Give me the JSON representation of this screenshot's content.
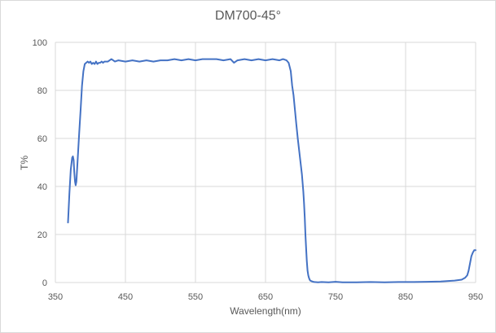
{
  "chart_data": {
    "type": "line",
    "title": "DM700-45°",
    "xlabel": "Wavelength(nm)",
    "ylabel": "T%",
    "xlim": [
      350,
      950
    ],
    "ylim": [
      0,
      100
    ],
    "x_ticks": [
      350,
      450,
      550,
      650,
      750,
      850,
      950
    ],
    "y_ticks": [
      0,
      20,
      40,
      60,
      80,
      100
    ],
    "grid": true,
    "legend": "none",
    "line_color": "#4472c4",
    "series": [
      {
        "name": "DM700-45°",
        "x": [
          368,
          370,
          372,
          374,
          375,
          376,
          377,
          378,
          379,
          380,
          382,
          384,
          386,
          388,
          390,
          392,
          394,
          396,
          398,
          400,
          402,
          404,
          406,
          408,
          410,
          412,
          414,
          416,
          418,
          420,
          425,
          430,
          435,
          440,
          450,
          460,
          470,
          480,
          490,
          500,
          510,
          520,
          530,
          540,
          550,
          560,
          570,
          580,
          590,
          600,
          605,
          610,
          620,
          630,
          640,
          650,
          660,
          670,
          675,
          680,
          683,
          686,
          688,
          690,
          692,
          694,
          696,
          698,
          700,
          702,
          704,
          705,
          706,
          707,
          708,
          709,
          710,
          711,
          712,
          713,
          714,
          716,
          718,
          720,
          725,
          730,
          740,
          750,
          760,
          780,
          800,
          820,
          840,
          860,
          880,
          900,
          920,
          930,
          935,
          938,
          940,
          942,
          944,
          946,
          948,
          950
        ],
        "y": [
          25,
          37,
          47,
          52,
          52.5,
          51,
          46,
          42,
          40.5,
          42,
          52,
          62,
          72,
          82,
          88,
          91,
          91.5,
          92,
          91.5,
          92,
          91,
          91.5,
          91,
          92,
          91,
          91.5,
          91.5,
          92,
          91.5,
          92,
          92,
          93,
          92,
          92.5,
          92,
          92.5,
          92,
          92.5,
          92,
          92.5,
          92.5,
          93,
          92.5,
          93,
          92.5,
          93,
          93,
          93,
          92.5,
          93,
          91.5,
          92.5,
          93,
          92.5,
          93,
          92.5,
          93,
          92.5,
          93,
          92.5,
          91.5,
          88,
          82,
          78,
          72,
          66,
          60,
          55,
          50,
          45,
          38,
          33,
          27,
          20,
          14,
          9,
          5,
          3,
          2,
          1.2,
          0.8,
          0.5,
          0.3,
          0.2,
          0.1,
          0.2,
          0.1,
          0.3,
          0.1,
          0.1,
          0.2,
          0.1,
          0.2,
          0.2,
          0.3,
          0.4,
          0.8,
          1.2,
          2,
          3,
          5,
          8,
          11,
          12.5,
          13.5,
          13.5
        ]
      }
    ]
  }
}
